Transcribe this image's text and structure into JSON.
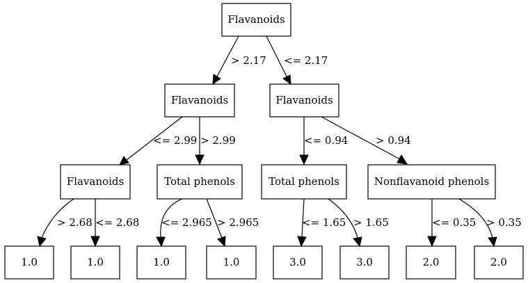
{
  "tree": {
    "nodes": {
      "root": "Flavanoids",
      "left": "Flavanoids",
      "right": "Flavanoids",
      "left_left": "Flavanoids",
      "left_right": "Total phenols",
      "right_left": "Total phenols",
      "right_right": "Nonflavanoid phenols",
      "leaf_1": "1.0",
      "leaf_2": "1.0",
      "leaf_3": "1.0",
      "leaf_4": "1.0",
      "leaf_5": "3.0",
      "leaf_6": "3.0",
      "leaf_7": "2.0",
      "leaf_8": "2.0"
    },
    "edges": {
      "root_left": "> 2.17",
      "root_right": "<= 2.17",
      "left_left": "<= 2.99",
      "left_right": "> 2.99",
      "right_left": "<= 0.94",
      "right_right": "> 0.94",
      "ll_leaf_1": "> 2.68",
      "ll_leaf_2": "<= 2.68",
      "lr_leaf_3": "<= 2.965",
      "lr_leaf_4": "> 2.965",
      "rl_leaf_5": "<= 1.65",
      "rl_leaf_6": "> 1.65",
      "rr_leaf_7": "<= 0.35",
      "rr_leaf_8": "> 0.35"
    }
  }
}
